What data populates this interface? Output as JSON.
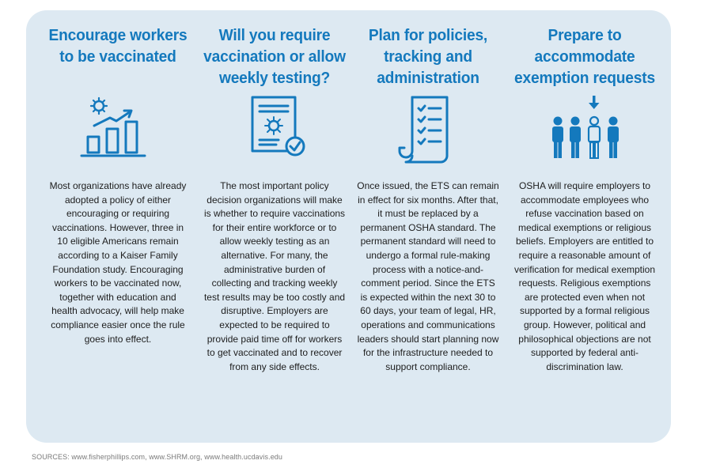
{
  "columns": [
    {
      "title": "Encourage workers to be vaccinated",
      "icon": "rising-bar-chart-with-virus-icon",
      "body": "Most organizations have already adopted a policy of either encouraging or requiring vaccinations. However, three in 10 eligible Americans remain according to a Kaiser Family Foundation study. Encouraging workers to be vaccinated now, together with education and health advocacy, will help make compliance easier once the rule goes into effect."
    },
    {
      "title": "Will you require vaccination or allow weekly testing?",
      "icon": "document-with-virus-and-checkmark-icon",
      "body": "The most important policy decision organizations will make is whether to require vaccinations for their entire workforce or to allow weekly testing as an alternative. For many, the administrative burden of collecting and tracking weekly test results may be too costly and disruptive. Employers are expected to be required to provide paid time off for workers to get vaccinated and to recover from any side effects."
    },
    {
      "title": "Plan for policies, tracking and administration",
      "icon": "checklist-scroll-icon",
      "body": "Once issued, the ETS can remain in effect for six months. After that, it must be replaced by a permanent OSHA standard. The permanent standard will need to undergo a formal rule-making process with a notice-and-comment period. Since the ETS is expected within the next 30 to 60 days, your team of legal, HR, operations and communications leaders should start planning now for the infrastructure needed to support compliance."
    },
    {
      "title": "Prepare to accommodate exemption requests",
      "icon": "group-of-people-with-selected-person-icon",
      "body": "OSHA will require employers to accommodate employees who refuse vaccination based on medical exemptions or religious beliefs. Employers are entitled to require a reasonable amount of verification for medical exemption requests. Religious exemptions are protected even when not supported by a formal religious group. However, political and philosophical objections are not supported by federal anti-discrimination law."
    }
  ],
  "sources": "SOURCES: www.fisherphillips.com, www.SHRM.org, www.health.ucdavis.edu",
  "colors": {
    "panel": "#dde9f2",
    "accent": "#1479bd",
    "body_text": "#1d1d1d",
    "sources_text": "#7a7a7a"
  }
}
